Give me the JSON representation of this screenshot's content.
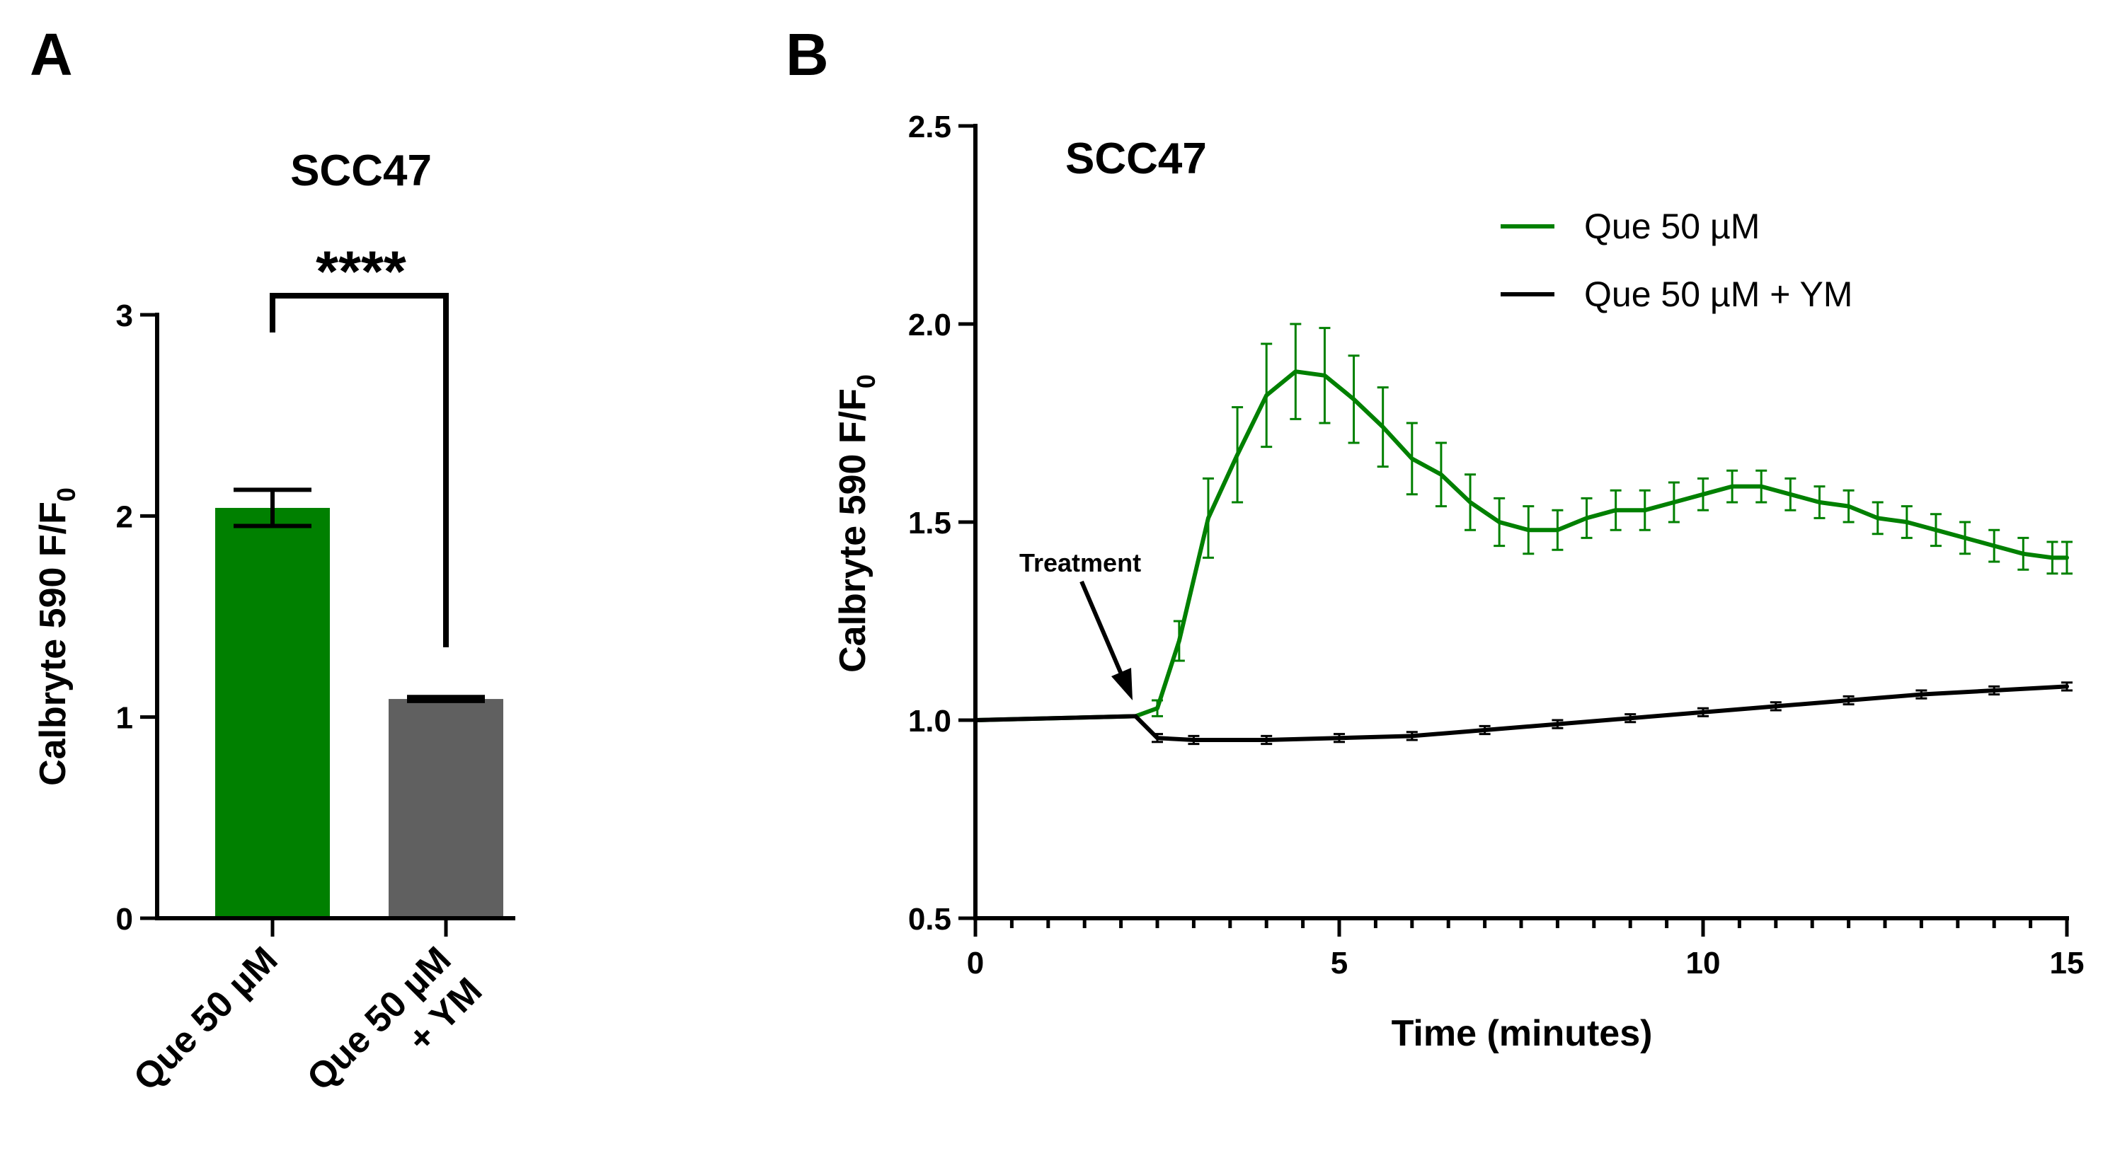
{
  "panel_a": {
    "label": "A",
    "ylabel_main": "Calbryte 590 F/F",
    "ylabel_sub": "0",
    "significance": "****"
  },
  "panel_b": {
    "label": "B",
    "ylabel_main": "Calbryte 590 F/F",
    "ylabel_sub": "0",
    "annotation": "Treatment"
  },
  "colors": {
    "que": "#008000",
    "que_ym": "#606060",
    "que_ym_line": "#000000"
  },
  "chart_data": [
    {
      "type": "bar",
      "title": "SCC47",
      "xlabel": "",
      "ylabel": "Calbryte 590 F/F0",
      "ylim": [
        0,
        3
      ],
      "yticks": [
        0,
        1,
        2,
        3
      ],
      "categories": [
        "Que 50 µM",
        "Que 50 µM + YM"
      ],
      "category_lines": [
        [
          "Que 50 µM"
        ],
        [
          "Que 50 µM",
          "+ YM"
        ]
      ],
      "values": [
        2.04,
        1.09
      ],
      "errors": [
        0.09,
        0.01
      ]
    },
    {
      "type": "line",
      "title": "SCC47",
      "xlabel": "Time (minutes)",
      "ylabel": "Calbryte 590 F/F0",
      "xlim": [
        0,
        15
      ],
      "ylim": [
        0.5,
        2.5
      ],
      "xticks": [
        0,
        5,
        10,
        15
      ],
      "yticks": [
        0.5,
        1.0,
        1.5,
        2.0,
        2.5
      ],
      "ytick_labels": [
        "0.5",
        "1.0",
        "1.5",
        "2.0",
        "2.5"
      ],
      "legend_position": "top-right",
      "series": [
        {
          "name": "Que 50 µM",
          "x": [
            0,
            2.2,
            2.5,
            2.8,
            3.2,
            3.6,
            4.0,
            4.4,
            4.8,
            5.2,
            5.6,
            6.0,
            6.4,
            6.8,
            7.2,
            7.6,
            8.0,
            8.4,
            8.8,
            9.2,
            9.6,
            10.0,
            10.4,
            10.8,
            11.2,
            11.6,
            12.0,
            12.4,
            12.8,
            13.2,
            13.6,
            14.0,
            14.4,
            14.8,
            15.0
          ],
          "y": [
            1.0,
            1.01,
            1.03,
            1.2,
            1.51,
            1.67,
            1.82,
            1.88,
            1.87,
            1.81,
            1.74,
            1.66,
            1.62,
            1.55,
            1.5,
            1.48,
            1.48,
            1.51,
            1.53,
            1.53,
            1.55,
            1.57,
            1.59,
            1.59,
            1.57,
            1.55,
            1.54,
            1.51,
            1.5,
            1.48,
            1.46,
            1.44,
            1.42,
            1.41,
            1.41
          ],
          "err": [
            0,
            0,
            0.02,
            0.05,
            0.1,
            0.12,
            0.13,
            0.12,
            0.12,
            0.11,
            0.1,
            0.09,
            0.08,
            0.07,
            0.06,
            0.06,
            0.05,
            0.05,
            0.05,
            0.05,
            0.05,
            0.04,
            0.04,
            0.04,
            0.04,
            0.04,
            0.04,
            0.04,
            0.04,
            0.04,
            0.04,
            0.04,
            0.04,
            0.04,
            0.04
          ]
        },
        {
          "name": "Que 50 µM + YM",
          "x": [
            0,
            2.2,
            2.5,
            3.0,
            4.0,
            5.0,
            6.0,
            7.0,
            8.0,
            9.0,
            10.0,
            11.0,
            12.0,
            13.0,
            14.0,
            15.0
          ],
          "y": [
            1.0,
            1.01,
            0.955,
            0.95,
            0.95,
            0.955,
            0.96,
            0.975,
            0.99,
            1.005,
            1.02,
            1.035,
            1.05,
            1.065,
            1.075,
            1.085
          ],
          "err": [
            0,
            0,
            0.01,
            0.01,
            0.01,
            0.01,
            0.01,
            0.01,
            0.01,
            0.01,
            0.01,
            0.01,
            0.01,
            0.01,
            0.01,
            0.01
          ]
        }
      ]
    }
  ]
}
